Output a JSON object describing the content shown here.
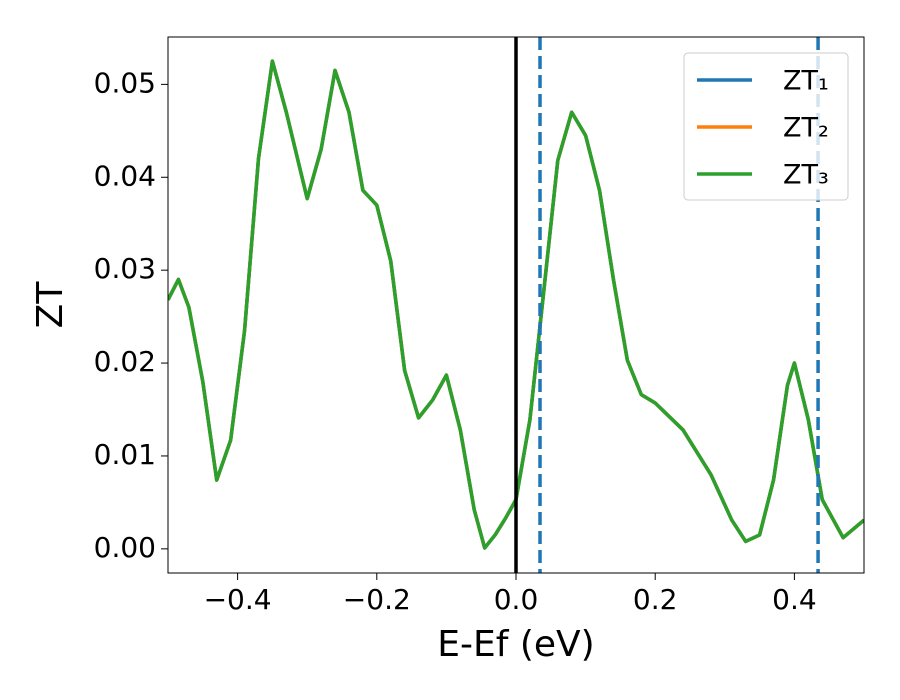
{
  "chart_data": {
    "type": "line",
    "xlabel": "E-Ef (eV)",
    "ylabel": "ZT",
    "x": [
      -0.5,
      -0.485,
      -0.47,
      -0.45,
      -0.43,
      -0.41,
      -0.39,
      -0.37,
      -0.35,
      -0.33,
      -0.3,
      -0.28,
      -0.26,
      -0.24,
      -0.22,
      -0.2,
      -0.18,
      -0.16,
      -0.14,
      -0.12,
      -0.1,
      -0.08,
      -0.06,
      -0.045,
      -0.03,
      -0.015,
      0,
      0.02,
      0.04,
      0.06,
      0.08,
      0.1,
      0.12,
      0.14,
      0.16,
      0.18,
      0.2,
      0.24,
      0.28,
      0.31,
      0.33,
      0.35,
      0.37,
      0.39,
      0.4,
      0.42,
      0.44,
      0.47,
      0.5
    ],
    "series": [
      {
        "name": "ZT₁",
        "color": "#1f77b4",
        "values": [
          0.0268,
          0.029,
          0.026,
          0.018,
          0.0074,
          0.0117,
          0.0235,
          0.042,
          0.0525,
          0.047,
          0.0377,
          0.043,
          0.0515,
          0.047,
          0.0386,
          0.037,
          0.031,
          0.0192,
          0.0141,
          0.016,
          0.0187,
          0.0128,
          0.0042,
          0.0001,
          0.0015,
          0.0033,
          0.0053,
          0.0139,
          0.0278,
          0.0418,
          0.047,
          0.0445,
          0.0386,
          0.029,
          0.0203,
          0.0166,
          0.0157,
          0.0128,
          0.008,
          0.0031,
          0.0008,
          0.0015,
          0.0074,
          0.0176,
          0.02,
          0.0139,
          0.0053,
          0.0012,
          0.0031
        ]
      },
      {
        "name": "ZT₂",
        "color": "#ff7f0e",
        "values": [
          0.0268,
          0.029,
          0.026,
          0.018,
          0.0074,
          0.0117,
          0.0235,
          0.042,
          0.0525,
          0.047,
          0.0377,
          0.043,
          0.0515,
          0.047,
          0.0386,
          0.037,
          0.031,
          0.0192,
          0.0141,
          0.016,
          0.0187,
          0.0128,
          0.0042,
          0.0001,
          0.0015,
          0.0033,
          0.0053,
          0.0139,
          0.0278,
          0.0418,
          0.047,
          0.0445,
          0.0386,
          0.029,
          0.0203,
          0.0166,
          0.0157,
          0.0128,
          0.008,
          0.0031,
          0.0008,
          0.0015,
          0.0074,
          0.0176,
          0.02,
          0.0139,
          0.0053,
          0.0012,
          0.0031
        ]
      },
      {
        "name": "ZT₃",
        "color": "#2ca02c",
        "values": [
          0.0268,
          0.029,
          0.026,
          0.018,
          0.0074,
          0.0117,
          0.0235,
          0.042,
          0.0525,
          0.047,
          0.0377,
          0.043,
          0.0515,
          0.047,
          0.0386,
          0.037,
          0.031,
          0.0192,
          0.0141,
          0.016,
          0.0187,
          0.0128,
          0.0042,
          0.0001,
          0.0015,
          0.0033,
          0.0053,
          0.0139,
          0.0278,
          0.0418,
          0.047,
          0.0445,
          0.0386,
          0.029,
          0.0203,
          0.0166,
          0.0157,
          0.0128,
          0.008,
          0.0031,
          0.0008,
          0.0015,
          0.0074,
          0.0176,
          0.02,
          0.0139,
          0.0053,
          0.0012,
          0.0031
        ]
      }
    ],
    "vlines": [
      {
        "x": 0,
        "color": "#000000",
        "style": "solid"
      },
      {
        "x": 0.0345,
        "color": "#1f77b4",
        "style": "dashed"
      },
      {
        "x": 0.434,
        "color": "#1f77b4",
        "style": "dashed"
      }
    ],
    "xlim": [
      -0.5,
      0.5
    ],
    "xticks": [
      {
        "value": -0.4,
        "label": "−0.4"
      },
      {
        "value": -0.2,
        "label": "−0.2"
      },
      {
        "value": 0,
        "label": "0.0"
      },
      0.2,
      0.4
    ],
    "ylim": [
      -0.0026,
      0.0551
    ],
    "yticks": [
      {
        "value": 0,
        "label": "0.00"
      },
      {
        "value": 0.01,
        "label": "0.01"
      },
      {
        "value": 0.02,
        "label": "0.02"
      },
      {
        "value": 0.03,
        "label": "0.03"
      },
      {
        "value": 0.04,
        "label": "0.04"
      },
      {
        "value": 0.05,
        "label": "0.05"
      }
    ],
    "legend": "upper right"
  }
}
